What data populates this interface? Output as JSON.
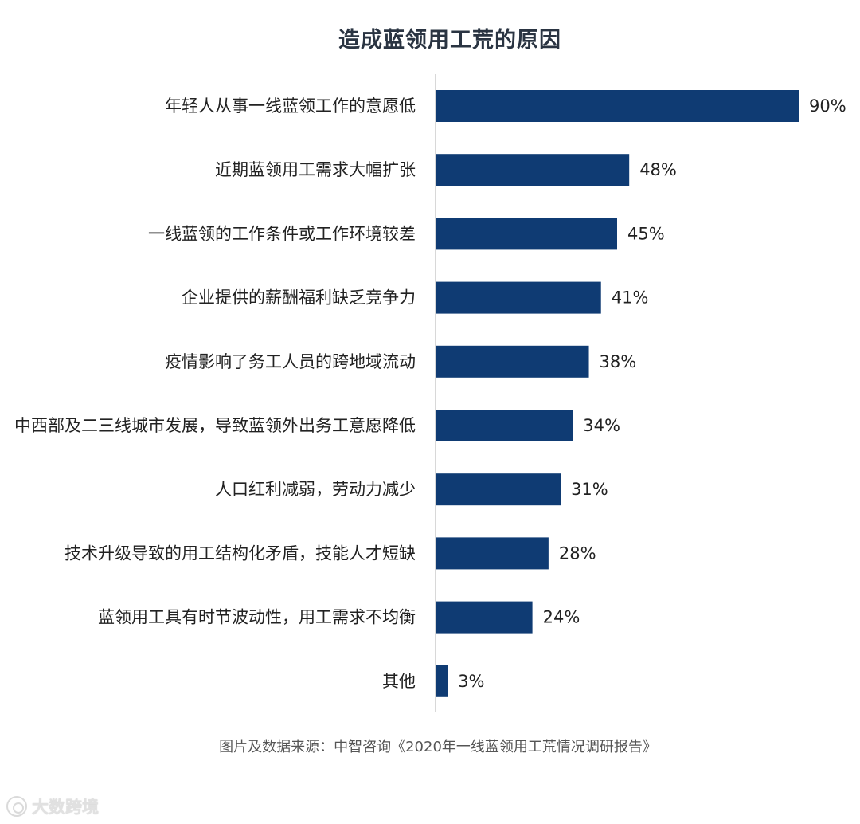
{
  "chart_data": {
    "type": "bar",
    "orientation": "horizontal",
    "title": "造成蓝领用工荒的原因",
    "categories": [
      "年轻人从事一线蓝领工作的意愿低",
      "近期蓝领用工需求大幅扩张",
      "一线蓝领的工作条件或工作环境较差",
      "企业提供的薪酬福利缺乏竞争力",
      "疫情影响了务工人员的跨地域流动",
      "中西部及二三线城市发展，导致蓝领外出务工意愿降低",
      "人口红利减弱，劳动力减少",
      "技术升级导致的用工结构化矛盾，技能人才短缺",
      "蓝领用工具有时节波动性，用工需求不均衡",
      "其他"
    ],
    "values": [
      90,
      48,
      45,
      41,
      38,
      34,
      31,
      28,
      24,
      3
    ],
    "value_labels": [
      "90%",
      "48%",
      "45%",
      "41%",
      "38%",
      "34%",
      "31%",
      "28%",
      "24%",
      "3%"
    ],
    "xlim": [
      0,
      100
    ],
    "bar_color": "#0f3b73",
    "axis_color": "#cccccc",
    "grid": false,
    "legend": "none"
  },
  "source": "图片及数据来源：中智咨询《2020年一线蓝领用工荒情况调研报告》",
  "watermark": {
    "text": "大数跨境",
    "icon": "brand-logo-icon"
  }
}
